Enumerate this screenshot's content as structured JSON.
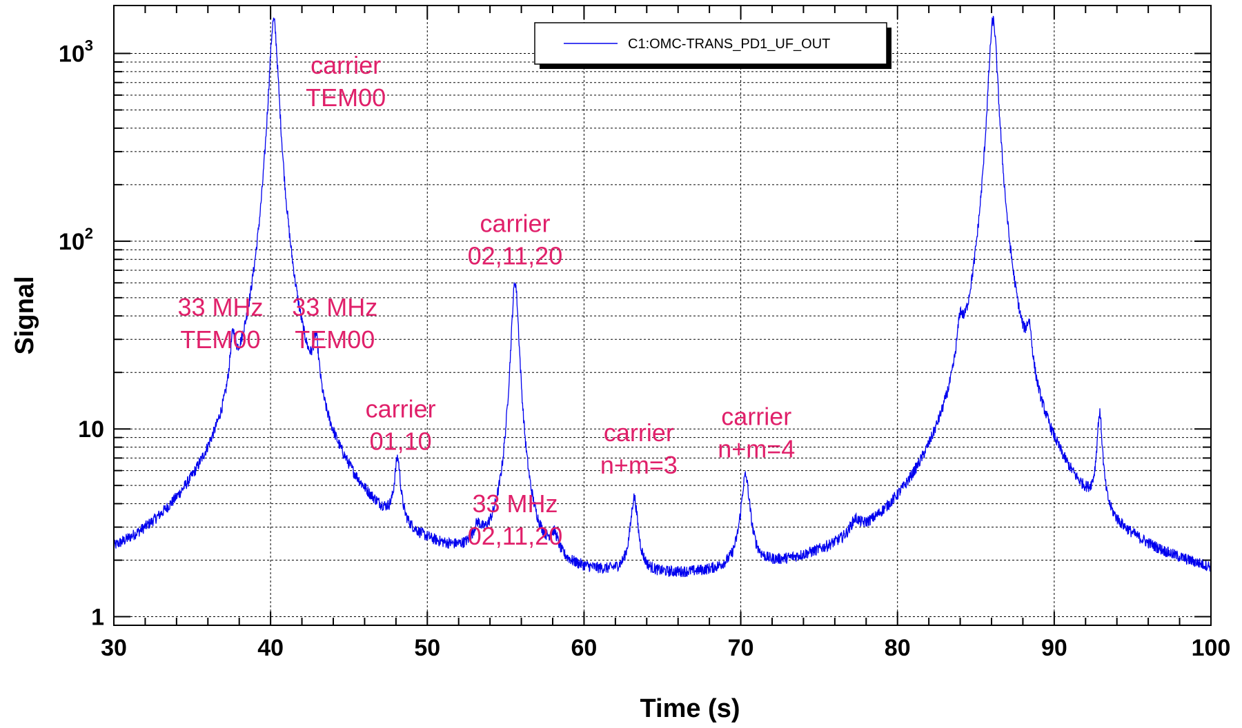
{
  "chart_data": {
    "type": "line",
    "xlabel": "Time (s)",
    "ylabel": "Signal",
    "xlim": [
      30,
      100
    ],
    "ylim": [
      0.9,
      1800
    ],
    "yscale": "log",
    "grid": true,
    "legend": {
      "position": "top-center",
      "entries": [
        "C1:OMC-TRANS_PD1_UF_OUT"
      ]
    },
    "x_ticks": [
      30,
      40,
      50,
      60,
      70,
      80,
      90,
      100
    ],
    "x_tick_labels": [
      "30",
      "40",
      "50",
      "60",
      "70",
      "80",
      "90",
      "100"
    ],
    "y_ticks": [
      {
        "value": 1,
        "base": "1",
        "exp": ""
      },
      {
        "value": 10,
        "base": "10",
        "exp": ""
      },
      {
        "value": 100,
        "base": "10",
        "exp": "2"
      },
      {
        "value": 1000,
        "base": "10",
        "exp": "3"
      }
    ],
    "series": [
      {
        "name": "C1:OMC-TRANS_PD1_UF_OUT",
        "color": "#0000ee",
        "baseline": 1.2,
        "peaks": [
          {
            "x": 37.6,
            "y": 16,
            "width": 0.2
          },
          {
            "x": 40.2,
            "y": 1500,
            "width": 0.28
          },
          {
            "x": 42.9,
            "y": 16,
            "width": 0.2
          },
          {
            "x": 48.1,
            "y": 5,
            "width": 0.2
          },
          {
            "x": 53.2,
            "y": 1.8,
            "width": 0.3
          },
          {
            "x": 55.6,
            "y": 60,
            "width": 0.24
          },
          {
            "x": 58.1,
            "y": 1.8,
            "width": 0.3
          },
          {
            "x": 63.2,
            "y": 3.8,
            "width": 0.25
          },
          {
            "x": 70.3,
            "y": 5,
            "width": 0.3
          },
          {
            "x": 77.3,
            "y": 1.7,
            "width": 0.35
          },
          {
            "x": 84.0,
            "y": 16,
            "width": 0.2
          },
          {
            "x": 86.1,
            "y": 1500,
            "width": 0.28
          },
          {
            "x": 88.4,
            "y": 16,
            "width": 0.2
          },
          {
            "x": 92.9,
            "y": 9.5,
            "width": 0.18
          }
        ]
      }
    ],
    "annotations": [
      {
        "lines": [
          "carrier",
          "TEM00"
        ],
        "x": 44.8,
        "y": 780
      },
      {
        "lines": [
          "33 MHz",
          "TEM00"
        ],
        "x": 36.8,
        "y": 40
      },
      {
        "lines": [
          "33 MHz",
          "TEM00"
        ],
        "x": 44.1,
        "y": 40
      },
      {
        "lines": [
          "carrier",
          "01,10"
        ],
        "x": 48.3,
        "y": 11.5
      },
      {
        "lines": [
          "carrier",
          "02,11,20"
        ],
        "x": 55.6,
        "y": 112
      },
      {
        "lines": [
          "33 MHz",
          "02,11,20"
        ],
        "x": 55.6,
        "y": 3.6
      },
      {
        "lines": [
          "carrier",
          "n+m=3"
        ],
        "x": 63.5,
        "y": 8.6
      },
      {
        "lines": [
          "carrier",
          "n+m=4"
        ],
        "x": 71.0,
        "y": 10.5
      }
    ]
  }
}
